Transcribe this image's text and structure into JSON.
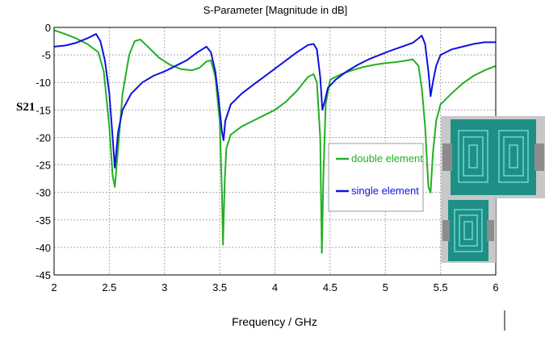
{
  "side_label": "S21",
  "chart_data": {
    "type": "line",
    "title": "S-Parameter [Magnitude in dB]",
    "xlabel": "Frequency / GHz",
    "ylabel": "",
    "xlim": [
      2,
      6
    ],
    "ylim": [
      -45,
      0
    ],
    "xticks": [
      "2",
      "2.5",
      "3",
      "3.5",
      "4",
      "4.5",
      "5",
      "5.5",
      "6"
    ],
    "yticks": [
      "0",
      "-5",
      "-10",
      "-15",
      "-20",
      "-25",
      "-30",
      "-35",
      "-40",
      "-45"
    ],
    "grid": true,
    "legend_position": "right",
    "series": [
      {
        "name": "double element",
        "color": "#22b022",
        "x": [
          2.0,
          2.1,
          2.2,
          2.3,
          2.4,
          2.45,
          2.5,
          2.53,
          2.55,
          2.58,
          2.62,
          2.68,
          2.73,
          2.78,
          2.85,
          2.95,
          3.05,
          3.15,
          3.25,
          3.32,
          3.38,
          3.42,
          3.46,
          3.5,
          3.52,
          3.53,
          3.545,
          3.56,
          3.6,
          3.7,
          3.8,
          3.9,
          4.0,
          4.1,
          4.2,
          4.3,
          4.35,
          4.38,
          4.41,
          4.425,
          4.44,
          4.46,
          4.5,
          4.6,
          4.7,
          4.8,
          4.9,
          5.0,
          5.1,
          5.2,
          5.25,
          5.3,
          5.33,
          5.36,
          5.39,
          5.41,
          5.43,
          5.46,
          5.5,
          5.6,
          5.7,
          5.8,
          5.9,
          6.0
        ],
        "values": [
          -0.5,
          -1.2,
          -2.0,
          -3.0,
          -4.5,
          -8,
          -18,
          -27,
          -29,
          -22,
          -12,
          -5,
          -2.5,
          -2.2,
          -3.5,
          -5.5,
          -6.8,
          -7.6,
          -7.8,
          -7.3,
          -6.2,
          -6.0,
          -9,
          -17,
          -30,
          -39.5,
          -28,
          -22,
          -19.5,
          -18,
          -17,
          -16,
          -15,
          -13.5,
          -11.5,
          -9,
          -8.5,
          -10,
          -20,
          -41,
          -26,
          -14,
          -9.5,
          -8.5,
          -7.8,
          -7.2,
          -6.8,
          -6.5,
          -6.3,
          -6.0,
          -5.8,
          -7,
          -11,
          -18,
          -29,
          -30,
          -23,
          -17,
          -14,
          -12,
          -10.2,
          -8.8,
          -7.8,
          -7.0
        ]
      },
      {
        "name": "single element",
        "color": "#1010e0",
        "x": [
          2.0,
          2.1,
          2.2,
          2.3,
          2.35,
          2.38,
          2.42,
          2.46,
          2.5,
          2.53,
          2.55,
          2.58,
          2.62,
          2.7,
          2.8,
          2.9,
          3.0,
          3.1,
          3.2,
          3.3,
          3.38,
          3.42,
          3.46,
          3.49,
          3.52,
          3.535,
          3.55,
          3.6,
          3.7,
          3.8,
          3.9,
          4.0,
          4.1,
          4.2,
          4.3,
          4.35,
          4.38,
          4.41,
          4.43,
          4.45,
          4.48,
          4.55,
          4.65,
          4.75,
          4.85,
          4.95,
          5.05,
          5.15,
          5.25,
          5.3,
          5.33,
          5.36,
          5.39,
          5.41,
          5.43,
          5.46,
          5.5,
          5.6,
          5.7,
          5.8,
          5.9,
          6.0
        ],
        "values": [
          -3.5,
          -3.3,
          -2.8,
          -2.0,
          -1.5,
          -1.2,
          -2.5,
          -6,
          -12,
          -20,
          -25.5,
          -19,
          -15,
          -12,
          -10,
          -8.8,
          -8.0,
          -7.0,
          -6.0,
          -4.5,
          -3.5,
          -4.5,
          -8,
          -13,
          -19,
          -20.5,
          -17,
          -14,
          -12,
          -10.5,
          -9,
          -7.5,
          -6,
          -4.5,
          -3.2,
          -3.0,
          -4,
          -9,
          -15,
          -13.5,
          -11,
          -9.5,
          -8,
          -6.8,
          -5.8,
          -5.0,
          -4.2,
          -3.5,
          -2.8,
          -2.0,
          -1.5,
          -3,
          -8,
          -12.5,
          -10,
          -7,
          -5,
          -4,
          -3.5,
          -3.0,
          -2.7,
          -2.7
        ]
      }
    ]
  }
}
